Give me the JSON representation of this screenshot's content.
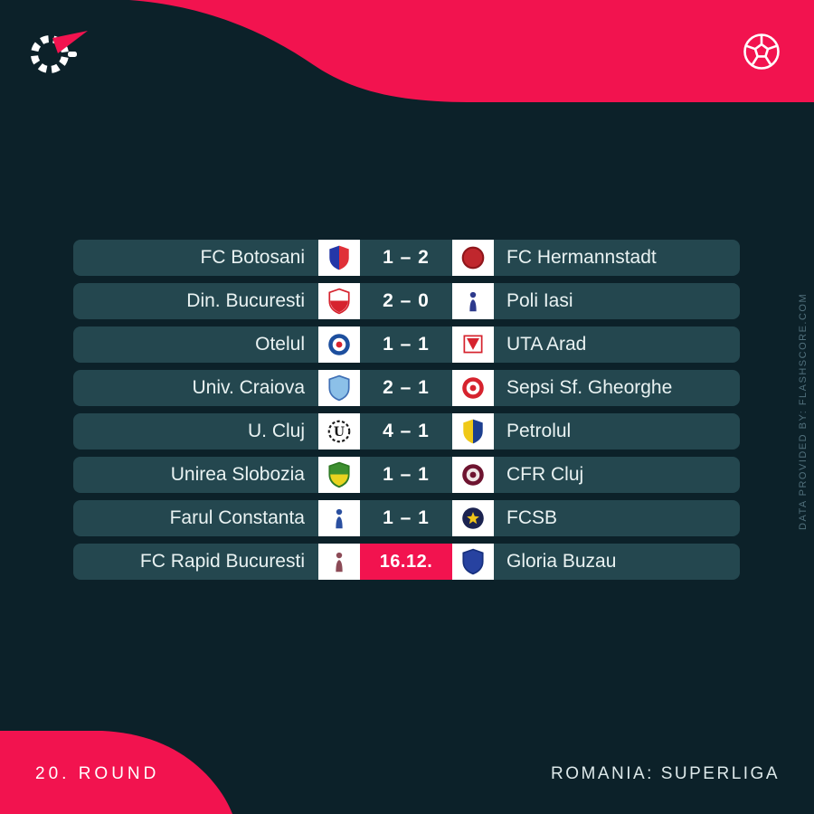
{
  "colors": {
    "background": "#0c2129",
    "row": "#24474f",
    "accent_pink": "#f2134f",
    "logo_box": "#ffffff",
    "team_text": "#e9f2f2",
    "watermark_text": "#51707c"
  },
  "header": {
    "brand_icon": "flashscore-logo",
    "sport_icon": "football-icon"
  },
  "footer": {
    "round_label": "20. ROUND",
    "league_label": "ROMANIA: SUPERLIGA"
  },
  "watermark": {
    "text": "DATA PROVIDED BY: FLASHSCORE.COM"
  },
  "matches": [
    {
      "home": {
        "name": "FC Botosani",
        "icon": "fc-botosani-crest",
        "crest": {
          "kind": "split-shield",
          "colors": [
            "#2437a8",
            "#e03038"
          ]
        }
      },
      "away": {
        "name": "FC Hermannstadt",
        "icon": "fc-hermannstadt-crest",
        "crest": {
          "kind": "round-shield",
          "colors": [
            "#c0272d",
            "#8f161b"
          ]
        }
      },
      "home_goals": 1,
      "away_goals": 2
    },
    {
      "home": {
        "name": "Din. Bucuresti",
        "icon": "dinamo-bucuresti-crest",
        "crest": {
          "kind": "split-shield-h",
          "colors": [
            "#ffffff",
            "#d6232e",
            "#d6232e"
          ]
        }
      },
      "away": {
        "name": "Poli Iasi",
        "icon": "poli-iasi-crest",
        "crest": {
          "kind": "emblem",
          "colors": [
            "#2d3a8c"
          ]
        }
      },
      "home_goals": 2,
      "away_goals": 0
    },
    {
      "home": {
        "name": "Otelul",
        "icon": "otelul-crest",
        "crest": {
          "kind": "ring",
          "colors": [
            "#1d4f9e",
            "#ffffff",
            "#d6232e"
          ]
        }
      },
      "away": {
        "name": "UTA Arad",
        "icon": "uta-arad-crest",
        "crest": {
          "kind": "triangle",
          "colors": [
            "#d6232e"
          ]
        }
      },
      "home_goals": 1,
      "away_goals": 1
    },
    {
      "home": {
        "name": "Univ. Craiova",
        "icon": "univ-craiova-crest",
        "crest": {
          "kind": "shield",
          "colors": [
            "#8cc0e8",
            "#3f6fb5"
          ]
        }
      },
      "away": {
        "name": "Sepsi Sf. Gheorghe",
        "icon": "sepsi-crest",
        "crest": {
          "kind": "ring",
          "colors": [
            "#d6232e",
            "#ffffff",
            "#d6232e"
          ]
        }
      },
      "home_goals": 2,
      "away_goals": 1
    },
    {
      "home": {
        "name": "U. Cluj",
        "icon": "u-cluj-crest",
        "crest": {
          "kind": "letter-circle",
          "colors": [
            "#1a1a1a"
          ],
          "letter": "U"
        }
      },
      "away": {
        "name": "Petrolul",
        "icon": "petrolul-crest",
        "crest": {
          "kind": "split-shield",
          "colors": [
            "#f0c918",
            "#1d3f8f"
          ]
        }
      },
      "home_goals": 4,
      "away_goals": 1
    },
    {
      "home": {
        "name": "Unirea Slobozia",
        "icon": "unirea-slobozia-crest",
        "crest": {
          "kind": "split-shield-h",
          "colors": [
            "#3d8f2f",
            "#e8d31f",
            "#2f7a24"
          ]
        }
      },
      "away": {
        "name": "CFR Cluj",
        "icon": "cfr-cluj-crest",
        "crest": {
          "kind": "ring",
          "colors": [
            "#6e1430",
            "#efe6e6",
            "#6e1430"
          ]
        }
      },
      "home_goals": 1,
      "away_goals": 1
    },
    {
      "home": {
        "name": "Farul Constanta",
        "icon": "farul-constanta-crest",
        "crest": {
          "kind": "emblem",
          "colors": [
            "#2a4fa0"
          ]
        }
      },
      "away": {
        "name": "FCSB",
        "icon": "fcsb-crest",
        "crest": {
          "kind": "star-circle",
          "colors": [
            "#1b2350",
            "#f0c419"
          ]
        }
      },
      "home_goals": 1,
      "away_goals": 1
    },
    {
      "home": {
        "name": "FC Rapid Bucuresti",
        "icon": "fc-rapid-bucuresti-crest",
        "crest": {
          "kind": "emblem",
          "colors": [
            "#8c4a56"
          ]
        }
      },
      "away": {
        "name": "Gloria Buzau",
        "icon": "gloria-buzau-crest",
        "crest": {
          "kind": "shield",
          "colors": [
            "#2742a0",
            "#16307e"
          ]
        }
      },
      "date": "16.12."
    }
  ]
}
